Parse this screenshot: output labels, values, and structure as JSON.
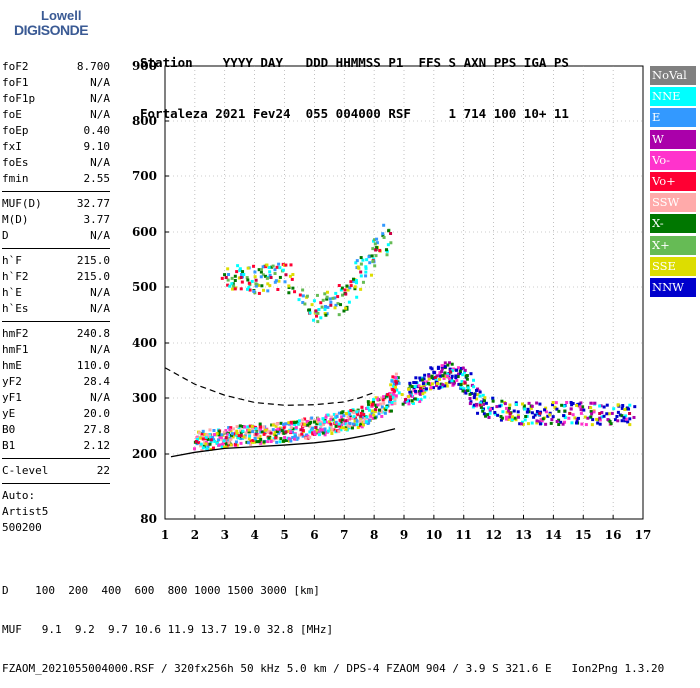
{
  "logo": {
    "line1": "Lowell",
    "line2": "DIGISONDE"
  },
  "header": {
    "row1": "Station    YYYY DAY   DDD HHMMSS P1  FFS S AXN PPS IGA PS",
    "row2": "Fortaleza 2021 Fev24  055 004000 RSF     1 714 100 10+ 11"
  },
  "params": {
    "group1": [
      {
        "name": "foF2",
        "value": "8.700"
      },
      {
        "name": "foF1",
        "value": "N/A"
      },
      {
        "name": "foF1p",
        "value": "N/A"
      },
      {
        "name": "foE",
        "value": "N/A"
      },
      {
        "name": "foEp",
        "value": "0.40"
      },
      {
        "name": "fxI",
        "value": "9.10"
      },
      {
        "name": "foEs",
        "value": "N/A"
      },
      {
        "name": "fmin",
        "value": "2.55"
      }
    ],
    "group2": [
      {
        "name": "MUF(D)",
        "value": "32.77"
      },
      {
        "name": "M(D)",
        "value": "3.77"
      },
      {
        "name": "D",
        "value": "N/A"
      }
    ],
    "group3": [
      {
        "name": "h`F",
        "value": "215.0"
      },
      {
        "name": "h`F2",
        "value": "215.0"
      },
      {
        "name": "h`E",
        "value": "N/A"
      },
      {
        "name": "h`Es",
        "value": "N/A"
      }
    ],
    "group4": [
      {
        "name": "hmF2",
        "value": "240.8"
      },
      {
        "name": "hmF1",
        "value": "N/A"
      },
      {
        "name": "hmE",
        "value": "110.0"
      },
      {
        "name": "yF2",
        "value": "28.4"
      },
      {
        "name": "yF1",
        "value": "N/A"
      },
      {
        "name": "yE",
        "value": "20.0"
      },
      {
        "name": "B0",
        "value": "27.8"
      },
      {
        "name": "B1",
        "value": "2.12"
      }
    ],
    "group5": [
      {
        "name": "C-level",
        "value": "22"
      }
    ],
    "auto": [
      "Auto:",
      "Artist5",
      "500200"
    ]
  },
  "legend": [
    {
      "label": "NoVal",
      "color": "#808080",
      "text_color": "#ffffff"
    },
    {
      "label": "NNE",
      "color": "#00ffff",
      "text_color": "#ffffff"
    },
    {
      "label": "E",
      "color": "#3399ff",
      "text_color": "#ffffff"
    },
    {
      "label": "W",
      "color": "#aa00aa",
      "text_color": "#ffffff"
    },
    {
      "label": "Vo-",
      "color": "#ff33cc",
      "text_color": "#ffffff"
    },
    {
      "label": "Vo+",
      "color": "#ff0033",
      "text_color": "#ffffff"
    },
    {
      "label": "SSW",
      "color": "#ffaaaa",
      "text_color": "#ffffff"
    },
    {
      "label": "X-",
      "color": "#007700",
      "text_color": "#ffffff"
    },
    {
      "label": "X+",
      "color": "#66bb55",
      "text_color": "#ffffff"
    },
    {
      "label": "SSE",
      "color": "#dddd00",
      "text_color": "#ffffff"
    },
    {
      "label": "NNW",
      "color": "#0000cc",
      "text_color": "#ffffff"
    }
  ],
  "footer": {
    "line1": "D    100  200  400  600  800 1000 1500 3000 [km]",
    "line2": "MUF   9.1  9.2  9.7 10.6 11.9 13.7 19.0 32.8 [MHz]",
    "line3": "FZAOM_2021055004000.RSF / 320fx256h 50 kHz 5.0 km / DPS-4 FZAOM 904 / 3.9 S 321.6 E   Ion2Png 1.3.20"
  },
  "chart_data": {
    "type": "scatter",
    "x_ticks": [
      "1",
      "2",
      "3",
      "4",
      "5",
      "6",
      "7",
      "8",
      "9",
      "10",
      "11",
      "12",
      "13",
      "14",
      "15",
      "16",
      "17"
    ],
    "y_ticks": [
      "900",
      "800",
      "700",
      "600",
      "500",
      "400",
      "300",
      "200",
      "80"
    ],
    "xlim": [
      1,
      17
    ],
    "y_scale": "nonlinear",
    "grid": "dotted",
    "series": [
      {
        "name": "O-trace F2",
        "color_key": "mixed",
        "points": [
          [
            2.0,
            225
          ],
          [
            2.5,
            228
          ],
          [
            3.0,
            232
          ],
          [
            3.5,
            236
          ],
          [
            4.0,
            238
          ],
          [
            4.5,
            240
          ],
          [
            5.0,
            242
          ],
          [
            5.5,
            246
          ],
          [
            6.0,
            250
          ],
          [
            6.5,
            256
          ],
          [
            7.0,
            262
          ],
          [
            7.5,
            270
          ],
          [
            8.0,
            282
          ],
          [
            8.5,
            300
          ],
          [
            8.7,
            330
          ]
        ]
      },
      {
        "name": "X-trace / spread F",
        "color_key": "mixed",
        "points": [
          [
            9.0,
            300
          ],
          [
            9.5,
            320
          ],
          [
            10.0,
            340
          ],
          [
            10.5,
            350
          ],
          [
            11.0,
            330
          ],
          [
            11.5,
            290
          ],
          [
            12.5,
            275
          ],
          [
            13.5,
            275
          ],
          [
            14.5,
            275
          ],
          [
            15.5,
            275
          ],
          [
            16.5,
            275
          ]
        ]
      },
      {
        "name": "Second hop",
        "color_key": "mixed",
        "points": [
          [
            3.0,
            520
          ],
          [
            3.5,
            520
          ],
          [
            4.0,
            515
          ],
          [
            4.5,
            520
          ],
          [
            5.0,
            525
          ],
          [
            6.0,
            460
          ],
          [
            6.5,
            470
          ],
          [
            7.0,
            490
          ],
          [
            7.5,
            530
          ],
          [
            8.0,
            570
          ],
          [
            8.5,
            600
          ]
        ]
      }
    ],
    "profile_curve": [
      [
        1.2,
        195
      ],
      [
        2.0,
        203
      ],
      [
        3.0,
        210
      ],
      [
        4.0,
        213
      ],
      [
        5.0,
        216
      ],
      [
        6.0,
        220
      ],
      [
        7.0,
        226
      ],
      [
        8.0,
        236
      ],
      [
        8.7,
        245
      ]
    ],
    "dashed_curve": [
      [
        1.0,
        355
      ],
      [
        2.0,
        325
      ],
      [
        3.0,
        305
      ],
      [
        4.0,
        292
      ],
      [
        5.0,
        287
      ],
      [
        6.0,
        288
      ],
      [
        7.0,
        293
      ],
      [
        7.5,
        300
      ],
      [
        8.0,
        310
      ]
    ]
  }
}
